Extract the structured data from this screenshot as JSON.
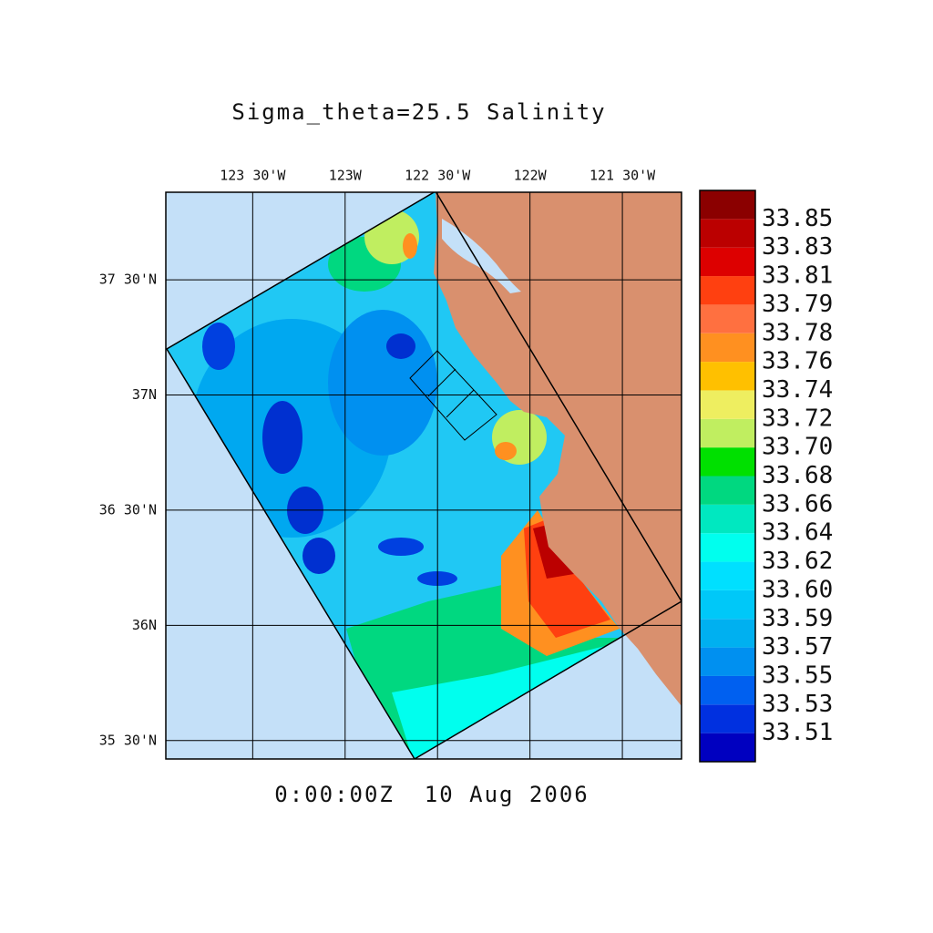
{
  "chart_data": {
    "type": "map",
    "title": "Sigma_theta=25.5 Salinity",
    "time_label": "0:00:00Z  10 Aug 2006",
    "xlim": [
      -123.97,
      -121.18
    ],
    "ylim": [
      35.42,
      37.88
    ],
    "xticks": [
      {
        "value": -123.5,
        "label": "123 30'W"
      },
      {
        "value": -123,
        "label": "123W"
      },
      {
        "value": -122.5,
        "label": "122 30'W"
      },
      {
        "value": -122,
        "label": "122W"
      },
      {
        "value": -121.5,
        "label": "121 30'W"
      }
    ],
    "yticks": [
      {
        "value": 35.5,
        "label": "35 30'N"
      },
      {
        "value": 36,
        "label": "36N"
      },
      {
        "value": 36.5,
        "label": "36 30'N"
      },
      {
        "value": 37,
        "label": "37N"
      },
      {
        "value": 37.5,
        "label": "37 30'N"
      }
    ],
    "grid": true,
    "colorbar": {
      "levels": [
        33.51,
        33.53,
        33.55,
        33.57,
        33.59,
        {
          "value": 33.6,
          "label": "33.60"
        },
        33.62,
        33.64,
        33.66,
        33.68,
        {
          "value": 33.7,
          "label": "33.70"
        },
        33.72,
        33.74,
        33.76,
        33.78,
        33.79,
        33.81,
        33.83,
        33.85
      ],
      "colors": [
        "#0000c0",
        "#0030e0",
        "#0060f0",
        "#0090f0",
        "#00b0f0",
        "#00c8f8",
        "#00e0ff",
        "#00ffee",
        "#00e8c0",
        "#00d880",
        "#00e000",
        "#c0ee60",
        "#eeee60",
        "#ffc000",
        "#ff9020",
        "#ff7040",
        "#ff4010",
        "#dd0000",
        "#bb0000",
        "#8b0000"
      ]
    }
  }
}
